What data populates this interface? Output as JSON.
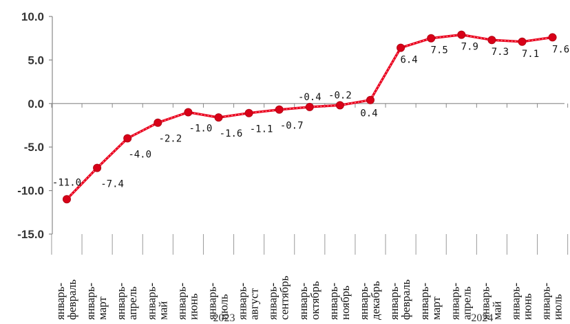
{
  "chart_data": {
    "type": "line",
    "title": "",
    "xlabel": "",
    "ylabel": "",
    "ylim": [
      -15,
      10
    ],
    "yticks": [
      "10.0",
      "5.0",
      "0.0",
      "-5.0",
      "-10.0",
      "-15.0"
    ],
    "grid": false,
    "categories": [
      "январь-февраль",
      "январь-март",
      "январь-апрель",
      "январь-май",
      "январь-июнь",
      "январь-июль",
      "январь-август",
      "январь-сентябрь",
      "январь-октябрь",
      "январь-ноябрь",
      "январь-декабрь",
      "январь-февраль",
      "январь-март",
      "январь-апрель",
      "январь-май",
      "январь-июнь",
      "январь-июль"
    ],
    "category_parts": [
      [
        "январь-",
        "февраль"
      ],
      [
        "январь-",
        "март"
      ],
      [
        "январь-",
        "апрель"
      ],
      [
        "январь-",
        "май"
      ],
      [
        "январь-",
        "июнь"
      ],
      [
        "январь-",
        "июль"
      ],
      [
        "январь-",
        "август"
      ],
      [
        "январь-",
        "сентябрь"
      ],
      [
        "январь-",
        "октябрь"
      ],
      [
        "январь-",
        "ноябрь"
      ],
      [
        "январь-",
        "декабрь"
      ],
      [
        "январь-",
        "февраль"
      ],
      [
        "январь-",
        "март"
      ],
      [
        "январь-",
        "апрель"
      ],
      [
        "январь-",
        "май"
      ],
      [
        "январь-",
        "июнь"
      ],
      [
        "январь-",
        "июль"
      ]
    ],
    "years": [
      {
        "label": "2023",
        "first_index": 0,
        "last_index": 10
      },
      {
        "label": "2024",
        "first_index": 11,
        "last_index": 16
      }
    ],
    "series": [
      {
        "values": [
          -11.0,
          -7.4,
          -4.0,
          -2.2,
          -1.0,
          -1.6,
          -1.1,
          -0.7,
          -0.4,
          -0.2,
          0.4,
          6.4,
          7.5,
          7.9,
          7.3,
          7.1,
          7.6
        ],
        "labels": [
          "-11.0",
          "-7.4",
          "-4.0",
          "-2.2",
          "-1.0",
          "-1.6",
          "-1.1",
          "-0.7",
          "-0.4",
          "-0.2",
          "0.4",
          "6.4",
          "7.5",
          "7.9",
          "7.3",
          "7.1",
          "7.6"
        ],
        "color": "#e8001c"
      }
    ]
  }
}
